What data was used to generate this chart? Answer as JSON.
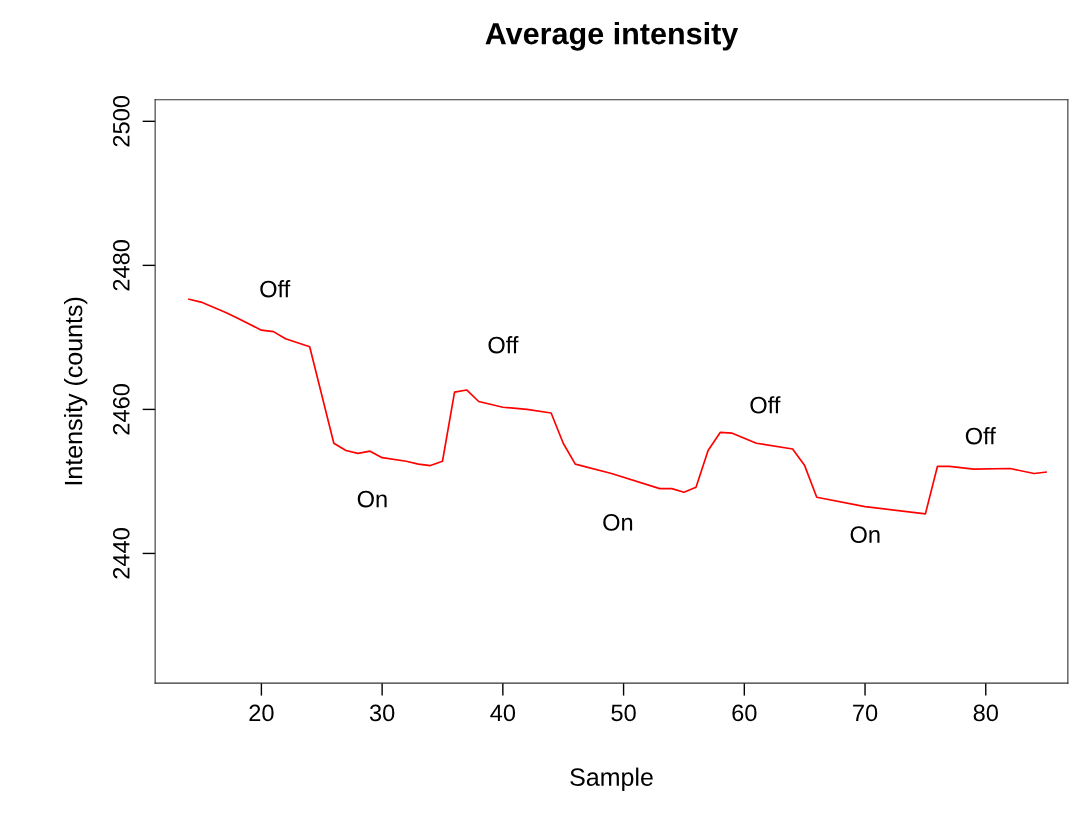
{
  "chart_data": {
    "type": "line",
    "title": "Average intensity",
    "xlabel": "Sample",
    "ylabel": "Intensity (counts)",
    "x": [
      14,
      15,
      17,
      18,
      20,
      21,
      22,
      24,
      26,
      27,
      28,
      29,
      30,
      32,
      33,
      34,
      35,
      36,
      37,
      38,
      40,
      42,
      44,
      45,
      46,
      49,
      53,
      54,
      55,
      56,
      57,
      58,
      59,
      61,
      64,
      65,
      66,
      70,
      75,
      76,
      77,
      79,
      82,
      84,
      85
    ],
    "series": [
      {
        "color": "#ff0000",
        "values": [
          2475.3,
          2474.9,
          2473.5,
          2472.7,
          2471.0,
          2470.8,
          2469.8,
          2468.7,
          2455.3,
          2454.3,
          2453.9,
          2454.2,
          2453.3,
          2452.8,
          2452.4,
          2452.2,
          2452.8,
          2462.4,
          2462.7,
          2461.1,
          2460.3,
          2460.0,
          2459.5,
          2455.3,
          2452.4,
          2451.1,
          2449.0,
          2449.0,
          2448.5,
          2449.2,
          2454.3,
          2456.8,
          2456.7,
          2455.3,
          2454.5,
          2452.2,
          2447.8,
          2446.5,
          2445.5,
          2452.1,
          2452.1,
          2451.7,
          2451.8,
          2451.1,
          2451.3
        ]
      }
    ],
    "xlim": [
      11.2,
      86.8
    ],
    "ylim": [
      2422,
      2503
    ],
    "xticks": [
      20,
      30,
      40,
      50,
      60,
      70,
      80
    ],
    "yticks": [
      2440,
      2460,
      2480,
      2500
    ],
    "grid": false,
    "line_style": "solid",
    "marker": "none",
    "annotations": [
      "Off",
      "On",
      "Off",
      "On",
      "Off",
      "On",
      "Off"
    ]
  }
}
